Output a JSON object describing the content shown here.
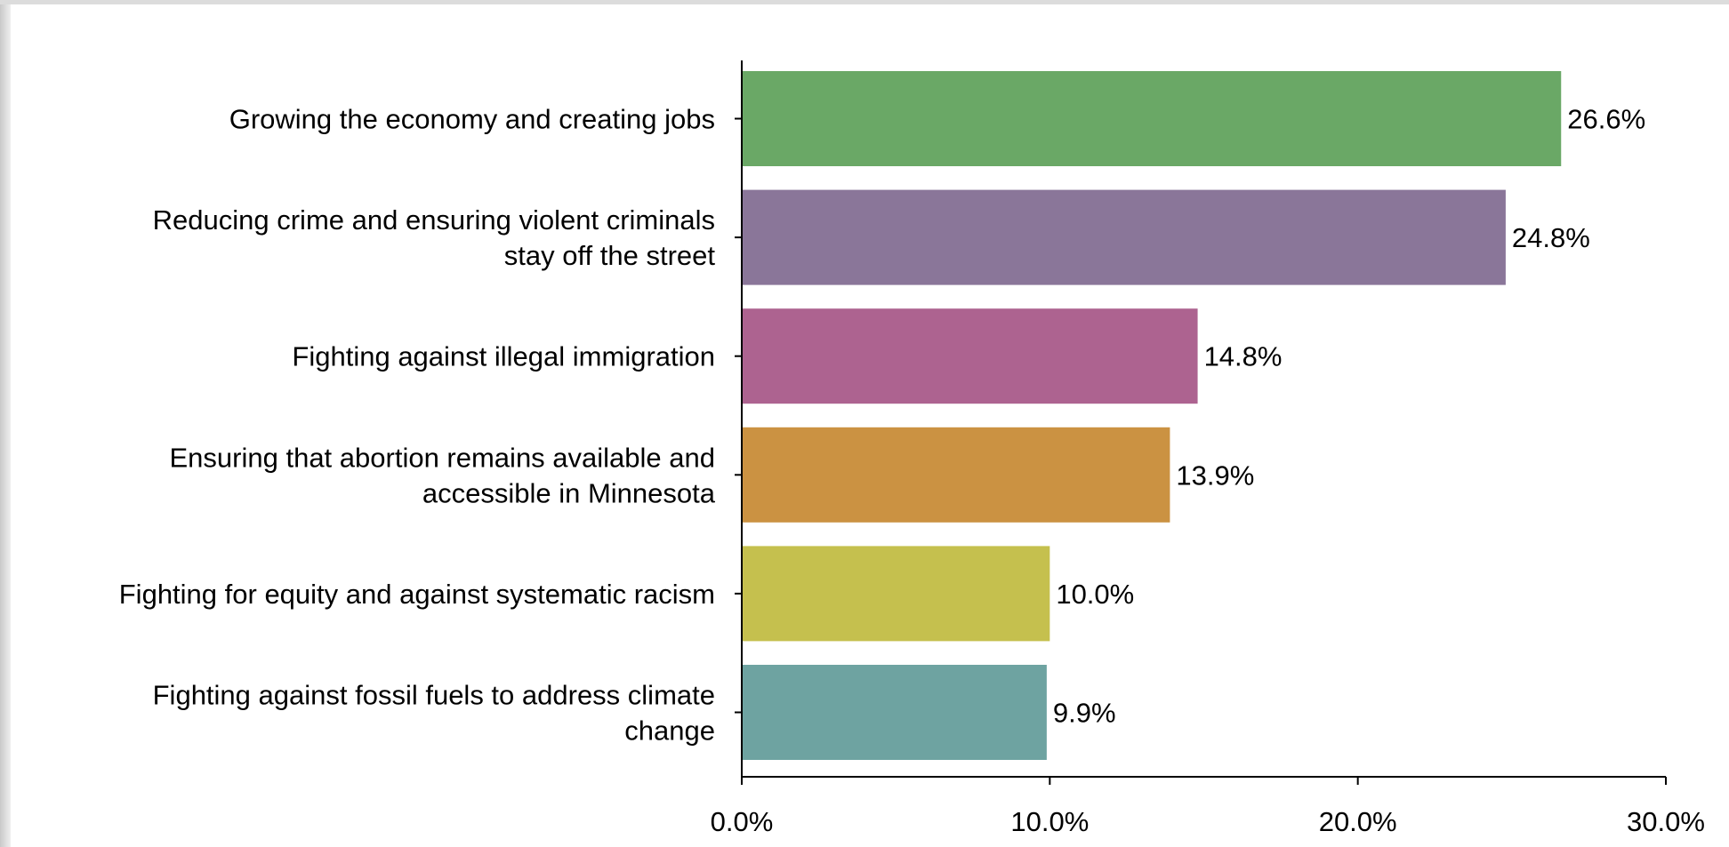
{
  "chart_data": {
    "type": "bar",
    "orientation": "horizontal",
    "title": "",
    "xlabel": "",
    "ylabel": "",
    "categories": [
      [
        "Growing the economy and creating jobs"
      ],
      [
        "Reducing crime and ensuring violent criminals",
        "stay off the street"
      ],
      [
        "Fighting against illegal immigration"
      ],
      [
        "Ensuring that abortion remains available and",
        "accessible in Minnesota"
      ],
      [
        "Fighting for equity and against systematic racism"
      ],
      [
        "Fighting against fossil fuels to address climate",
        "change"
      ]
    ],
    "values": [
      26.6,
      24.8,
      14.8,
      13.9,
      10.0,
      9.9
    ],
    "value_labels": [
      "26.6%",
      "24.8%",
      "14.8%",
      "13.9%",
      "10.0%",
      "9.9%"
    ],
    "colors": [
      "#6aa866",
      "#8a7699",
      "#ad6390",
      "#cb9242",
      "#c5c04e",
      "#6ea3a1"
    ],
    "xlim": [
      0,
      30
    ],
    "xticks": [
      0,
      10,
      20,
      30
    ],
    "xtick_labels": [
      "0.0%",
      "10.0%",
      "20.0%",
      "30.0%"
    ],
    "grid": false,
    "legend": "none"
  }
}
